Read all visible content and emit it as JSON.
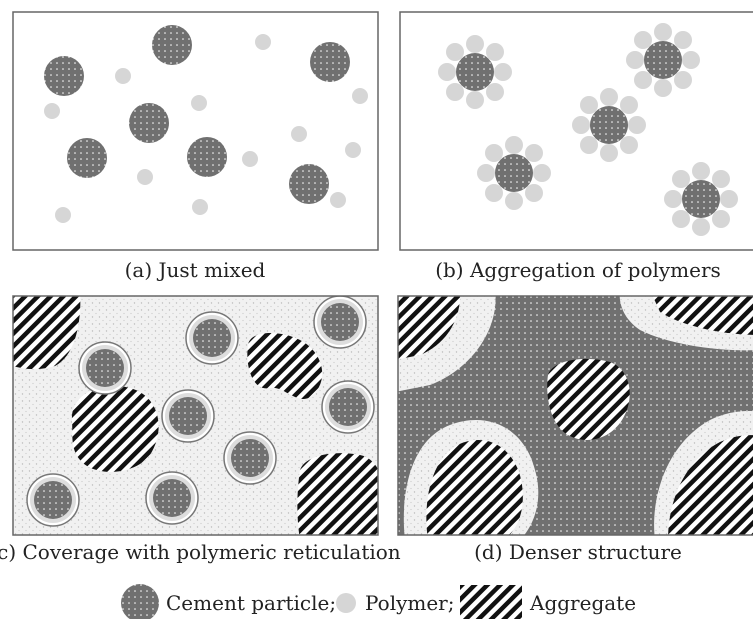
{
  "panels": [
    {
      "caption": "(a) Just mixed"
    },
    {
      "caption": "(b) Aggregation of polymers"
    },
    {
      "caption": "(c) Coverage with polymeric reticulation"
    },
    {
      "caption": "(d) Denser structure"
    }
  ],
  "legend": [
    {
      "label": "Cement particle;"
    },
    {
      "label": "Polymer;"
    },
    {
      "label": "Aggregate"
    }
  ]
}
